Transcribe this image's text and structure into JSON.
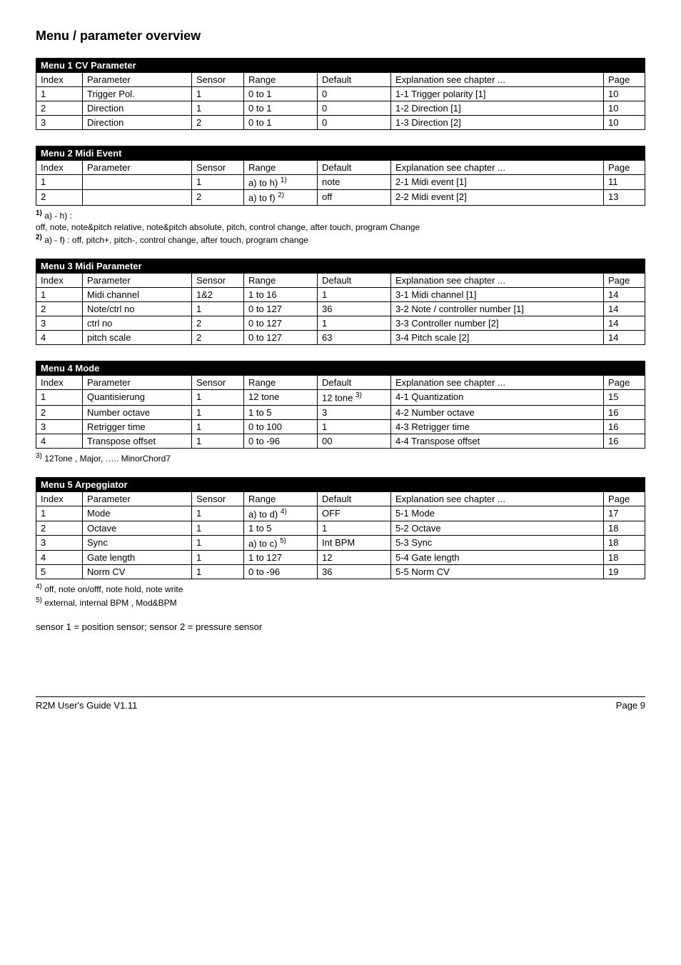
{
  "page_title": "Menu / parameter overview",
  "columns": {
    "index": "Index",
    "parameter": "Parameter",
    "sensor": "Sensor",
    "range": "Range",
    "default": "Default",
    "explanation": "Explanation see chapter ...",
    "page": "Page"
  },
  "menu1": {
    "title": "Menu 1   CV Parameter",
    "rows": [
      {
        "i": "1",
        "p": "Trigger Pol.",
        "s": "1",
        "r": "0 to 1",
        "d": "0",
        "e": "1-1 Trigger polarity [1]",
        "pg": "10"
      },
      {
        "i": "2",
        "p": "Direction",
        "s": "1",
        "r": "0 to 1",
        "d": "0",
        "e": "1-2 Direction [1]",
        "pg": "10"
      },
      {
        "i": "3",
        "p": "Direction",
        "s": "2",
        "r": "0 to 1",
        "d": "0",
        "e": "1-3 Direction [2]",
        "pg": "10"
      }
    ]
  },
  "menu2": {
    "title": "Menu 2   Midi Event",
    "rows": [
      {
        "i": "1",
        "p": "",
        "s": "1",
        "r": "a) to h)",
        "rs": "1)",
        "d": "note",
        "e": "2-1 Midi event [1]",
        "pg": "11"
      },
      {
        "i": "2",
        "p": "",
        "s": "2",
        "r": "a) to f)",
        "rs": "2)",
        "d": "off",
        "e": "2-2 Midi event [2]",
        "pg": "13"
      }
    ]
  },
  "footnote1": {
    "sup1": "1)",
    "l1a": " a) - h) :",
    "l1b": "off, note, note&pitch relative, note&pitch absolute, pitch, control change, after touch, program Change",
    "sup2": "2)",
    "l2": " a) - f) : off, pitch+, pitch-, control change, after touch, program change"
  },
  "menu3": {
    "title": "Menu 3   Midi Parameter",
    "rows": [
      {
        "i": "1",
        "p": "Midi channel",
        "s": "1&2",
        "r": "1 to 16",
        "d": "1",
        "e": "3-1 Midi channel [1]",
        "pg": "14"
      },
      {
        "i": "2",
        "p": "Note/ctrl no",
        "s": "1",
        "r": "0 to 127",
        "d": "36",
        "e": "3-2 Note / controller number [1]",
        "pg": "14"
      },
      {
        "i": "3",
        "p": "ctrl no",
        "s": "2",
        "r": "0 to 127",
        "d": "1",
        "e": "3-3 Controller number [2]",
        "pg": "14"
      },
      {
        "i": "4",
        "p": "pitch scale",
        "s": "2",
        "r": "0 to 127",
        "d": "63",
        "e": "3-4 Pitch scale [2]",
        "pg": "14"
      }
    ]
  },
  "menu4": {
    "title": "Menu 4   Mode",
    "rows": [
      {
        "i": "1",
        "p": "Quantisierung",
        "s": "1",
        "r": "12 tone",
        "d": "12 tone",
        "ds": "3)",
        "e": "4-1 Quantization",
        "pg": "15"
      },
      {
        "i": "2",
        "p": "Number octave",
        "s": "1",
        "r": "1 to 5",
        "d": "3",
        "e": "4-2 Number octave",
        "pg": "16"
      },
      {
        "i": "3",
        "p": "Retrigger time",
        "s": "1",
        "r": "0 to 100",
        "d": "1",
        "e": "4-3 Retrigger time",
        "pg": "16"
      },
      {
        "i": "4",
        "p": "Transpose offset",
        "s": "1",
        "r": "0 to -96",
        "d": "00",
        "e": "4-4 Transpose offset",
        "pg": "16"
      }
    ]
  },
  "footnote3": {
    "sup": "3)",
    "text": " 12Tone , Major,  …..  MinorChord7"
  },
  "menu5": {
    "title": "Menu 5   Arpeggiator",
    "rows": [
      {
        "i": "1",
        "p": "Mode",
        "s": "1",
        "r": "a) to d)",
        "rs": "4)",
        "d": "OFF",
        "e": "5-1 Mode",
        "pg": "17"
      },
      {
        "i": "2",
        "p": "Octave",
        "s": "1",
        "r": "1 to 5",
        "d": "1",
        "e": "5-2 Octave",
        "pg": "18"
      },
      {
        "i": "3",
        "p": "Sync",
        "s": "1",
        "r": "a) to c)",
        "rs": "5)",
        "d": "Int BPM",
        "e": "5-3 Sync",
        "pg": "18"
      },
      {
        "i": "4",
        "p": "Gate length",
        "s": "1",
        "r": "1 to 127",
        "d": "12",
        "e": "5-4 Gate length",
        "pg": "18"
      },
      {
        "i": "5",
        "p": "Norm CV",
        "s": "1",
        "r": "0 to -96",
        "d": "36",
        "e": "5-5 Norm CV",
        "pg": "19"
      }
    ]
  },
  "footnote45": {
    "sup4": "4)",
    "l4": " off, note on/offf, note hold, note write",
    "sup5": "5)",
    "l5": " external, internal BPM , Mod&BPM"
  },
  "sensor_note": "sensor 1 = position sensor; sensor 2 = pressure sensor",
  "footer": {
    "left": "R2M User's Guide V1.11",
    "right": "Page 9"
  }
}
